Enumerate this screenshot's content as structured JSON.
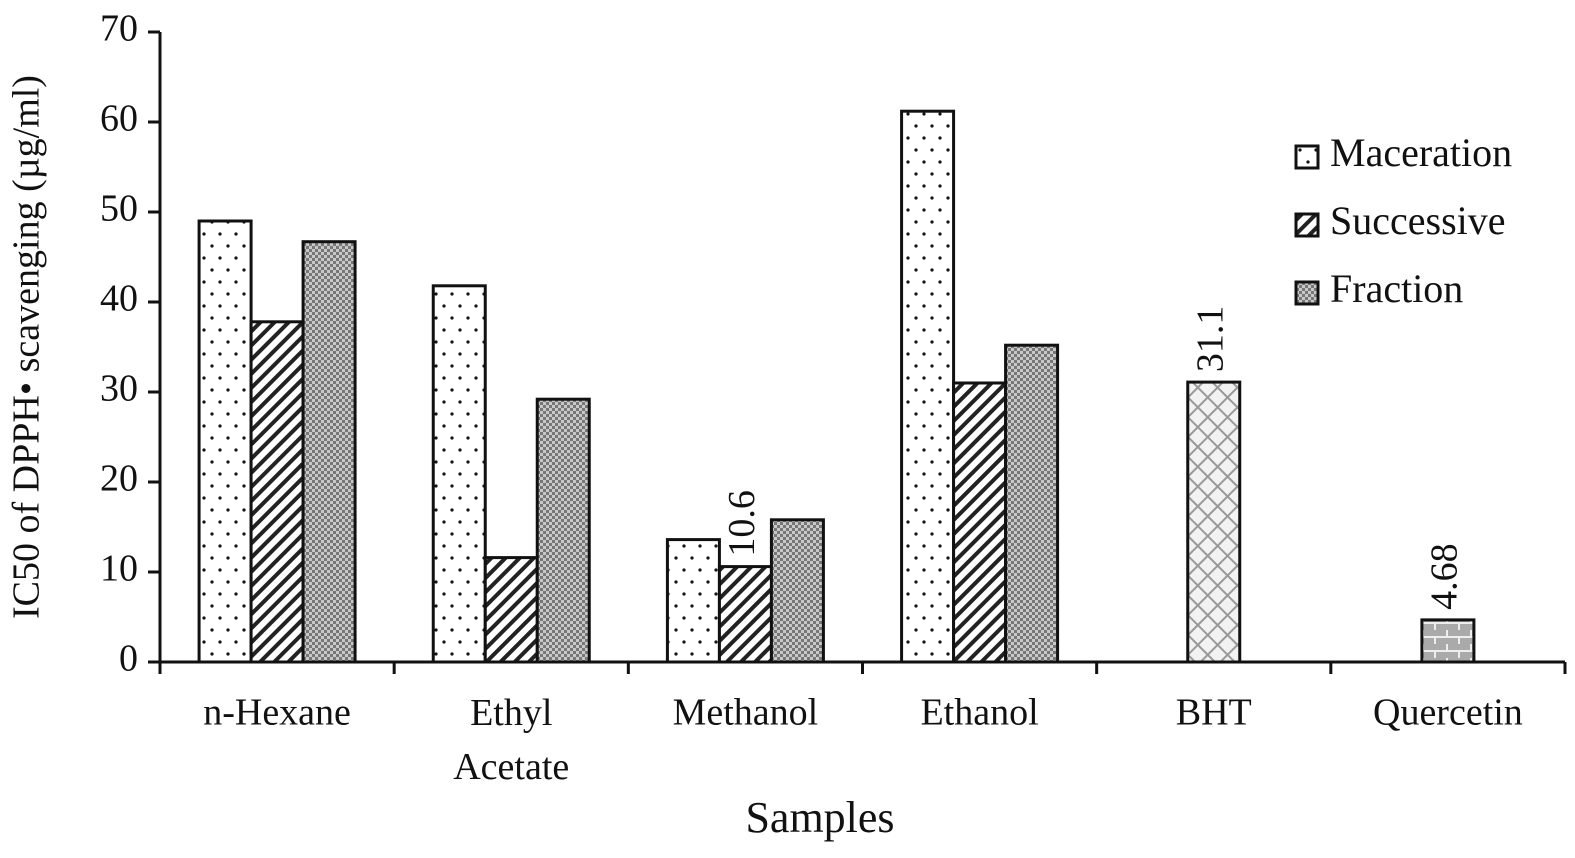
{
  "chart_data": {
    "type": "bar",
    "y_label": "IC50 of DPPH• scavenging (µg/ml)",
    "x_label": "Samples",
    "categories": [
      "n-Hexane",
      "Ethyl Acetate",
      "Methanol",
      "Ethanol",
      "BHT",
      "Quercetin"
    ],
    "series": [
      {
        "name": "Maceration",
        "pattern": "dots",
        "values": [
          49,
          41.8,
          13.6,
          61.2,
          null,
          null
        ]
      },
      {
        "name": "Successive",
        "pattern": "hatch",
        "values": [
          37.8,
          11.6,
          10.6,
          31,
          null,
          null
        ],
        "value_labels": [
          null,
          null,
          "10.6",
          null,
          null,
          null
        ]
      },
      {
        "name": "Fraction",
        "pattern": "checker",
        "values": [
          46.7,
          29.2,
          15.8,
          35.2,
          null,
          null
        ]
      },
      {
        "pattern": "diamond",
        "values": [
          null,
          null,
          null,
          null,
          31.1,
          null
        ],
        "value_labels": [
          null,
          null,
          null,
          null,
          "31.1",
          null
        ]
      },
      {
        "pattern": "brick",
        "values": [
          null,
          null,
          null,
          null,
          null,
          4.68
        ],
        "value_labels": [
          null,
          null,
          null,
          null,
          null,
          "4.68"
        ]
      }
    ],
    "ylim": [
      0,
      70
    ],
    "yticks": [
      0,
      10,
      20,
      30,
      40,
      50,
      60,
      70
    ],
    "legend": "right"
  }
}
